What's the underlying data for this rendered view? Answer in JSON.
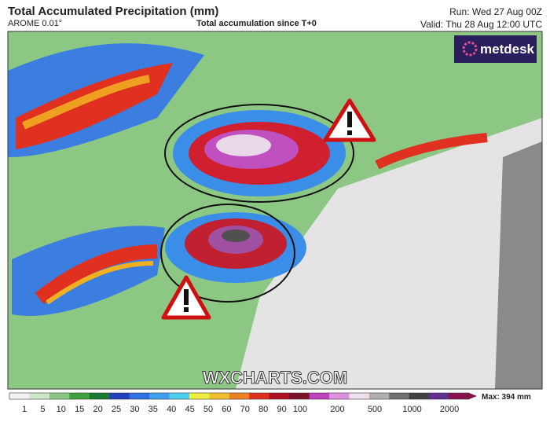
{
  "header": {
    "title": "Total Accumulated Precipitation (mm)",
    "model": "AROME 0.01°",
    "subtitle": "Total accumulation since T+0",
    "run": "Run: Wed 27 Aug 00Z",
    "valid": "Valid: Thu 28 Aug 12:00 UTC"
  },
  "logo": "metdesk",
  "watermark": "WXCHARTS.COM",
  "colorbar": {
    "labels": [
      "1",
      "5",
      "10",
      "15",
      "20",
      "25",
      "30",
      "35",
      "40",
      "45",
      "50",
      "60",
      "70",
      "80",
      "90",
      "100",
      "200",
      "500",
      "1000",
      "2000"
    ],
    "max": "Max: 394 mm"
  }
}
